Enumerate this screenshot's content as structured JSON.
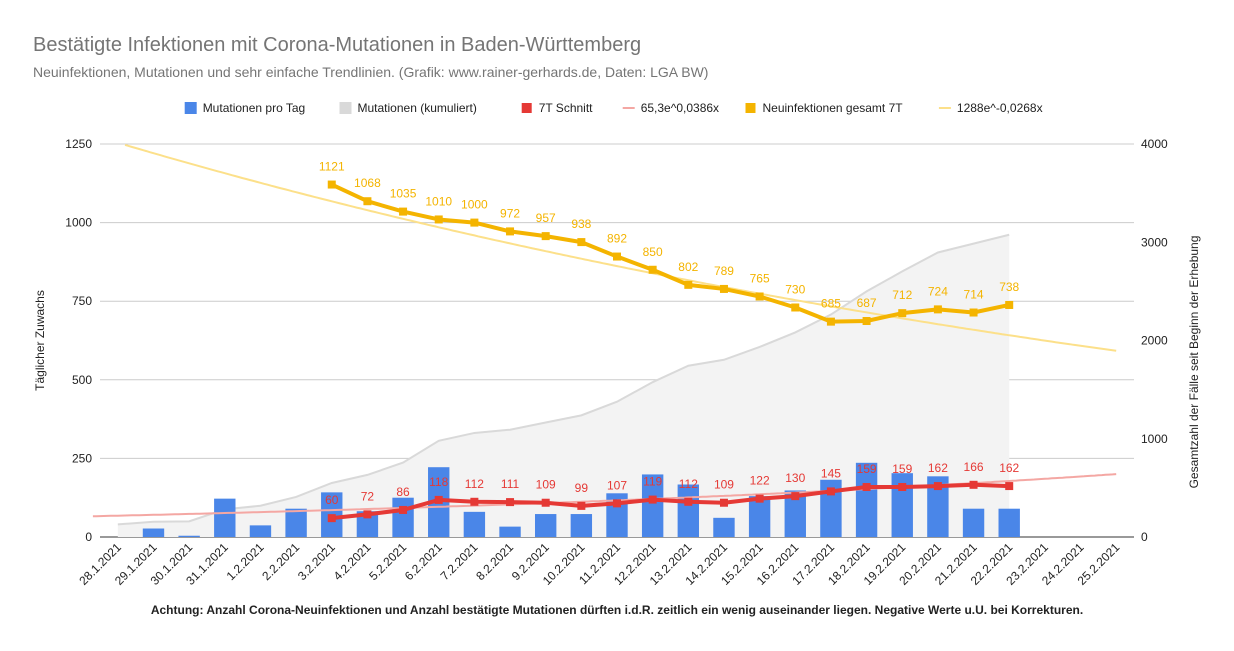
{
  "title": "Bestätigte Infektionen mit Corona-Mutationen in Baden-Württemberg",
  "subtitle": "Neuinfektionen, Mutationen und sehr einfache Trendlinien.  (Grafik: www.rainer-gerhards.de, Daten: LGA BW)",
  "footnote": "Achtung: Anzahl Corona-Neuinfektionen und Anzahl bestätigte Mutationen dürften i.d.R. zeitlich ein wenig auseinander liegen. Negative Werte u.U. bei Korrekturen.",
  "chart_data": {
    "type": "bar+line",
    "categories": [
      "28.1.2021",
      "29.1.2021",
      "30.1.2021",
      "31.1.2021",
      "1.2.2021",
      "2.2.2021",
      "3.2.2021",
      "4.2.2021",
      "5.2.2021",
      "6.2.2021",
      "7.2.2021",
      "8.2.2021",
      "9.2.2021",
      "10.2.2021",
      "11.2.2021",
      "12.2.2021",
      "13.2.2021",
      "14.2.2021",
      "15.2.2021",
      "16.2.2021",
      "17.2.2021",
      "18.2.2021",
      "19.2.2021",
      "20.2.2021",
      "21.2.2021",
      "22.2.2021",
      "23.2.2021",
      "24.2.2021",
      "25.2.2021"
    ],
    "ylabel": "Täglicher Zuwachs",
    "y2label": "Gesamtzahl der Fälle seit Beginn der Erhebung",
    "ylim": [
      0,
      1250
    ],
    "yticks": [
      0,
      250,
      500,
      750,
      1000,
      1250
    ],
    "y2lim": [
      0,
      4000
    ],
    "y2ticks": [
      0,
      1000,
      2000,
      3000,
      4000
    ],
    "grid": true,
    "legend_position": "top",
    "series": [
      {
        "name": "Mutationen pro Tag",
        "type": "bar",
        "axis": "left",
        "color": "#4a86e8",
        "values": [
          null,
          27,
          4,
          122,
          37,
          90,
          142,
          82,
          125,
          222,
          80,
          33,
          73,
          73,
          139,
          199,
          167,
          61,
          130,
          148,
          182,
          236,
          203,
          193,
          90,
          90,
          null,
          null,
          null
        ]
      },
      {
        "name": "Mutationen (kumuliert)",
        "type": "area",
        "axis": "right",
        "color": "#d9d9d9",
        "values": [
          128,
          155,
          159,
          281,
          318,
          408,
          550,
          632,
          757,
          979,
          1059,
          1092,
          1165,
          1238,
          1377,
          1576,
          1743,
          1804,
          1934,
          2082,
          2264,
          2500,
          2703,
          2896,
          2986,
          3076,
          null,
          null,
          null
        ]
      },
      {
        "name": "7T Schnitt",
        "type": "line",
        "axis": "left",
        "color": "#e53935",
        "values": [
          null,
          null,
          null,
          null,
          null,
          null,
          60,
          72,
          86,
          118,
          112,
          111,
          109,
          99,
          107,
          119,
          112,
          109,
          122,
          130,
          145,
          159,
          159,
          162,
          166,
          162,
          null,
          null,
          null
        ]
      },
      {
        "name": "65,3e^0,0386x",
        "type": "trendline",
        "axis": "left",
        "color": "#f4a7a3",
        "formula": "65.3*exp(0.0386*x)"
      },
      {
        "name": "Neuinfektionen gesamt 7T",
        "type": "line",
        "axis": "left",
        "color": "#f4b400",
        "values": [
          null,
          null,
          null,
          null,
          null,
          null,
          1121,
          1068,
          1035,
          1010,
          1000,
          972,
          957,
          938,
          892,
          850,
          802,
          789,
          765,
          730,
          685,
          687,
          712,
          724,
          714,
          738,
          null,
          null,
          null
        ]
      },
      {
        "name": "1288e^-0,0268x",
        "type": "trendline",
        "axis": "left",
        "color": "#fce08a",
        "formula": "1288*exp(-0.0268*x)"
      }
    ]
  }
}
